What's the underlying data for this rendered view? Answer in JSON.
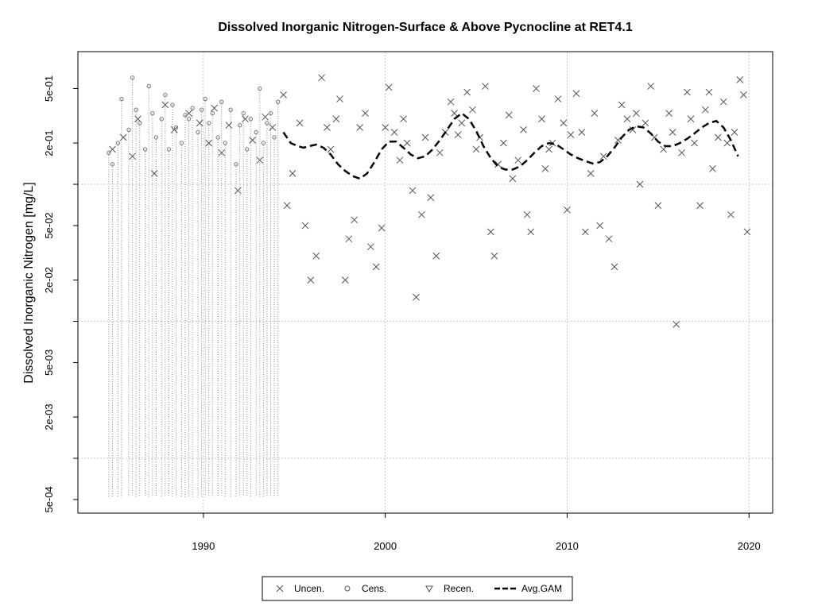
{
  "chart_data": {
    "type": "scatter",
    "title": "Dissolved Inorganic Nitrogen-Surface & Above Pycnocline at RET4.1",
    "xlabel": "",
    "ylabel": "Dissolved Inorganic Nitrogen [mg/L]",
    "y_scale": "log",
    "xlim": [
      1983.1,
      2021.3
    ],
    "ylim": [
      0.000398,
      0.93
    ],
    "x_ticks": [
      1990,
      2000,
      2010,
      2020
    ],
    "x_tick_labels": [
      "1990",
      "2000",
      "2010",
      "2020"
    ],
    "y_ticks": [
      0.0005,
      0.002,
      0.005,
      0.02,
      0.05,
      0.2,
      0.5
    ],
    "y_tick_labels": [
      "5e-04",
      "2e-03",
      "5e-03",
      "2e-02",
      "5e-02",
      "2e-01",
      "5e-01"
    ],
    "y_grid": [
      0.001,
      0.01,
      0.1
    ],
    "grid": true,
    "legend_position": "bottom-outside",
    "legend": [
      {
        "label": "Uncen.",
        "symbol": "x"
      },
      {
        "label": "Cens.",
        "symbol": "circle"
      },
      {
        "label": "Recen.",
        "symbol": "triangle-down"
      },
      {
        "label": "Avg.GAM",
        "symbol": "dashed-line"
      }
    ],
    "series": [
      {
        "name": "Uncen.",
        "marker": "x",
        "x": [
          1985.0,
          1985.6,
          1986.1,
          1986.4,
          1987.3,
          1987.9,
          1988.4,
          1989.2,
          1989.8,
          1990.3,
          1990.6,
          1991.0,
          1991.4,
          1991.9,
          1992.3,
          1992.7,
          1993.1,
          1993.4,
          1993.8,
          1994.4,
          1994.6,
          1994.9,
          1995.3,
          1995.6,
          1995.9,
          1996.2,
          1996.5,
          1996.8,
          1997.0,
          1997.3,
          1997.5,
          1997.8,
          1998.0,
          1998.3,
          1998.6,
          1998.9,
          1999.2,
          1999.5,
          1999.8,
          2000.0,
          2000.2,
          2000.5,
          2000.8,
          2001.0,
          2001.2,
          2001.5,
          2001.7,
          2002.0,
          2002.2,
          2002.5,
          2002.8,
          2003.0,
          2003.3,
          2003.6,
          2003.8,
          2004.0,
          2004.2,
          2004.5,
          2004.8,
          2005.0,
          2005.2,
          2005.5,
          2005.8,
          2006.0,
          2006.2,
          2006.5,
          2006.8,
          2007.0,
          2007.3,
          2007.6,
          2007.8,
          2008.0,
          2008.3,
          2008.6,
          2008.8,
          2009.0,
          2009.2,
          2009.5,
          2009.8,
          2010.0,
          2010.2,
          2010.5,
          2010.8,
          2011.0,
          2011.3,
          2011.5,
          2011.8,
          2012.0,
          2012.3,
          2012.6,
          2012.8,
          2013.0,
          2013.3,
          2013.6,
          2013.8,
          2014.0,
          2014.3,
          2014.6,
          2014.8,
          2015.0,
          2015.3,
          2015.6,
          2015.8,
          2016.0,
          2016.3,
          2016.6,
          2016.8,
          2017.0,
          2017.3,
          2017.6,
          2017.8,
          2018.0,
          2018.3,
          2018.6,
          2018.8,
          2019.0,
          2019.2,
          2019.5,
          2019.7,
          2019.9
        ],
        "y": [
          0.18,
          0.22,
          0.16,
          0.3,
          0.12,
          0.38,
          0.25,
          0.33,
          0.28,
          0.2,
          0.36,
          0.17,
          0.27,
          0.09,
          0.3,
          0.21,
          0.15,
          0.31,
          0.26,
          0.45,
          0.07,
          0.12,
          0.28,
          0.05,
          0.02,
          0.03,
          0.6,
          0.26,
          0.18,
          0.3,
          0.42,
          0.02,
          0.04,
          0.055,
          0.26,
          0.33,
          0.035,
          0.025,
          0.048,
          0.26,
          0.51,
          0.24,
          0.15,
          0.3,
          0.2,
          0.09,
          0.015,
          0.06,
          0.22,
          0.08,
          0.03,
          0.17,
          0.24,
          0.4,
          0.33,
          0.23,
          0.28,
          0.47,
          0.35,
          0.18,
          0.22,
          0.52,
          0.045,
          0.03,
          0.14,
          0.2,
          0.32,
          0.11,
          0.15,
          0.25,
          0.06,
          0.045,
          0.5,
          0.3,
          0.13,
          0.18,
          0.2,
          0.42,
          0.28,
          0.065,
          0.23,
          0.46,
          0.24,
          0.045,
          0.12,
          0.33,
          0.05,
          0.16,
          0.04,
          0.025,
          0.21,
          0.38,
          0.3,
          0.25,
          0.33,
          0.1,
          0.28,
          0.52,
          0.22,
          0.07,
          0.18,
          0.33,
          0.24,
          0.0095,
          0.17,
          0.47,
          0.3,
          0.2,
          0.07,
          0.35,
          0.47,
          0.13,
          0.22,
          0.4,
          0.2,
          0.06,
          0.24,
          0.58,
          0.45,
          0.045
        ],
        "color": "#555555"
      },
      {
        "name": "Cens.",
        "marker": "circle",
        "x": [
          1984.8,
          1985.0,
          1985.3,
          1985.5,
          1985.9,
          1986.1,
          1986.3,
          1986.5,
          1986.8,
          1987.0,
          1987.2,
          1987.4,
          1987.7,
          1987.9,
          1988.1,
          1988.3,
          1988.5,
          1988.8,
          1989.0,
          1989.2,
          1989.4,
          1989.7,
          1989.9,
          1990.1,
          1990.3,
          1990.5,
          1990.8,
          1991.0,
          1991.2,
          1991.5,
          1991.8,
          1992.0,
          1992.2,
          1992.4,
          1992.6,
          1992.9,
          1993.1,
          1993.3,
          1993.5,
          1993.7,
          1993.9,
          1994.1
        ],
        "y": [
          0.17,
          0.14,
          0.2,
          0.42,
          0.25,
          0.6,
          0.35,
          0.28,
          0.18,
          0.52,
          0.33,
          0.22,
          0.3,
          0.45,
          0.18,
          0.38,
          0.26,
          0.2,
          0.32,
          0.3,
          0.36,
          0.24,
          0.35,
          0.42,
          0.28,
          0.33,
          0.22,
          0.4,
          0.2,
          0.35,
          0.14,
          0.27,
          0.33,
          0.18,
          0.3,
          0.24,
          0.5,
          0.2,
          0.28,
          0.33,
          0.22,
          0.4
        ],
        "color": "#777777"
      },
      {
        "name": "Recen.",
        "marker": "triangle-down",
        "x": [],
        "y": []
      },
      {
        "name": "Avg.GAM",
        "type": "line",
        "style": "dashed",
        "x": [
          1994.4,
          1994.8,
          1995.2,
          1995.5,
          1995.8,
          1996.2,
          1996.6,
          1997.0,
          1997.4,
          1997.8,
          1998.2,
          1998.6,
          1999.0,
          1999.4,
          1999.8,
          2000.2,
          2000.6,
          2001.0,
          2001.4,
          2001.8,
          2002.2,
          2002.6,
          2003.0,
          2003.4,
          2003.8,
          2004.2,
          2004.6,
          2005.0,
          2005.4,
          2005.8,
          2006.2,
          2006.6,
          2007.0,
          2007.4,
          2007.8,
          2008.2,
          2008.6,
          2009.0,
          2009.4,
          2009.8,
          2010.2,
          2010.6,
          2011.0,
          2011.4,
          2011.8,
          2012.2,
          2012.6,
          2013.0,
          2013.4,
          2013.8,
          2014.2,
          2014.6,
          2015.0,
          2015.4,
          2015.8,
          2016.2,
          2016.6,
          2017.0,
          2017.4,
          2017.8,
          2018.2,
          2018.6,
          2019.0,
          2019.4
        ],
        "y": [
          0.24,
          0.2,
          0.19,
          0.185,
          0.19,
          0.195,
          0.185,
          0.165,
          0.14,
          0.125,
          0.115,
          0.11,
          0.12,
          0.145,
          0.18,
          0.205,
          0.205,
          0.185,
          0.165,
          0.155,
          0.16,
          0.18,
          0.21,
          0.25,
          0.3,
          0.33,
          0.3,
          0.245,
          0.19,
          0.155,
          0.135,
          0.128,
          0.128,
          0.135,
          0.15,
          0.17,
          0.19,
          0.2,
          0.195,
          0.18,
          0.165,
          0.155,
          0.148,
          0.142,
          0.145,
          0.16,
          0.185,
          0.22,
          0.25,
          0.265,
          0.26,
          0.235,
          0.205,
          0.19,
          0.19,
          0.2,
          0.215,
          0.235,
          0.26,
          0.28,
          0.29,
          0.26,
          0.21,
          0.16
        ],
        "color": "#000000"
      }
    ]
  }
}
